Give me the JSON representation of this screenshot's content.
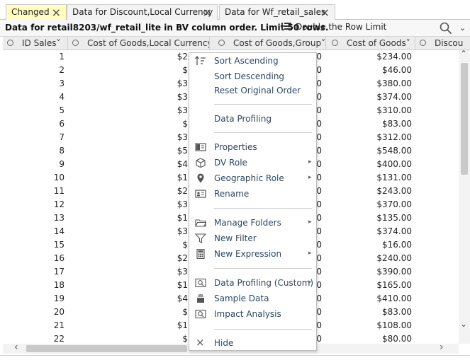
{
  "tabs": [
    {
      "label": "Changed",
      "active": true
    },
    {
      "label": "Data for Discount,Local Currency",
      "active": false
    },
    {
      "label": "Data for Wf_retail_sales",
      "active": false
    }
  ],
  "subheader": {
    "title": "Data for retail8203/wf_retail_lite in BV column order. Limit 50 rows.",
    "limit_button": "Double the Row Limit"
  },
  "columns": [
    {
      "label": "ID Sales"
    },
    {
      "label": "Cost of Goods,Local Currency"
    },
    {
      "label": "Cost of Goods,Group"
    },
    {
      "label": "Cost of Goods"
    },
    {
      "label": "Discou"
    }
  ],
  "rows": [
    {
      "id": "1",
      "clc": "$2",
      "cg": "00",
      "cost": "$234.00"
    },
    {
      "id": "2",
      "clc": "$",
      "cg": "00",
      "cost": "$46.00"
    },
    {
      "id": "3",
      "clc": "$3",
      "cg": "00",
      "cost": "$380.00"
    },
    {
      "id": "4",
      "clc": "$3",
      "cg": "00",
      "cost": "$374.00"
    },
    {
      "id": "5",
      "clc": "$3",
      "cg": "00",
      "cost": "$310.00"
    },
    {
      "id": "6",
      "clc": "$",
      "cg": "00",
      "cost": "$83.00"
    },
    {
      "id": "7",
      "clc": "$3",
      "cg": "00",
      "cost": "$312.00"
    },
    {
      "id": "8",
      "clc": "$5",
      "cg": "00",
      "cost": "$548.00"
    },
    {
      "id": "9",
      "clc": "$4",
      "cg": "00",
      "cost": "$400.00"
    },
    {
      "id": "10",
      "clc": "$1",
      "cg": "00",
      "cost": "$131.00"
    },
    {
      "id": "11",
      "clc": "$2",
      "cg": "00",
      "cost": "$243.00"
    },
    {
      "id": "12",
      "clc": "$3",
      "cg": "00",
      "cost": "$370.00"
    },
    {
      "id": "13",
      "clc": "$1",
      "cg": "00",
      "cost": "$135.00"
    },
    {
      "id": "14",
      "clc": "$3",
      "cg": "00",
      "cost": "$374.00"
    },
    {
      "id": "15",
      "clc": "$",
      "cg": "00",
      "cost": "$16.00"
    },
    {
      "id": "16",
      "clc": "$2",
      "cg": "00",
      "cost": "$240.00"
    },
    {
      "id": "17",
      "clc": "$3",
      "cg": "00",
      "cost": "$390.00"
    },
    {
      "id": "18",
      "clc": "$1",
      "cg": "00",
      "cost": "$165.00"
    },
    {
      "id": "19",
      "clc": "$4",
      "cg": "00",
      "cost": "$410.00"
    },
    {
      "id": "20",
      "clc": "$",
      "cg": "00",
      "cost": "$83.00"
    },
    {
      "id": "21",
      "clc": "$1",
      "cg": "00",
      "cost": "$108.00"
    },
    {
      "id": "22",
      "clc": "$",
      "cg": "00",
      "cost": "$80.00"
    }
  ],
  "context_menu": {
    "sort_ascending": "Sort Ascending",
    "sort_descending": "Sort Descending",
    "reset_order": "Reset Original Order",
    "data_profiling": "Data Profiling",
    "properties": "Properties",
    "dv_role": "DV Role",
    "geographic_role": "Geographic Role",
    "rename": "Rename",
    "manage_folders": "Manage Folders",
    "new_filter": "New Filter",
    "new_expression": "New Expression",
    "data_profiling_custom": "Data Profiling (Custom)",
    "sample_data": "Sample Data",
    "impact_analysis": "Impact Analysis",
    "hide": "Hide"
  },
  "colors": {
    "active_tab": "#fffdc2",
    "menu_text": "#2c4866",
    "header_bg": "#ececec"
  }
}
